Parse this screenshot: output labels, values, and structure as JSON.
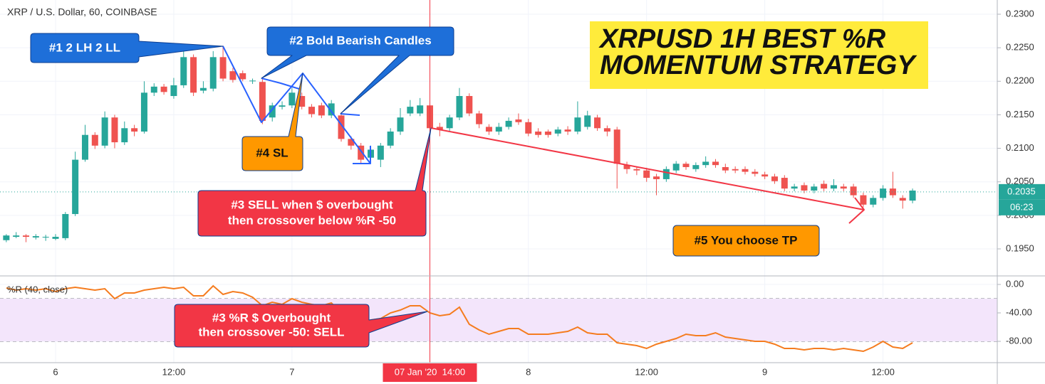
{
  "chart_data": {
    "type": "candlestick",
    "title": "XRP / U.S. Dollar, 60, COINBASE",
    "x": [
      -5,
      -4,
      -3,
      -2,
      -1,
      0,
      1,
      2,
      3,
      4,
      5,
      6,
      7,
      8,
      9,
      10,
      11,
      12,
      13,
      14,
      15,
      16,
      17,
      18,
      19,
      20,
      21,
      22,
      23,
      24,
      25,
      26,
      27,
      28,
      29,
      30,
      31,
      32,
      33,
      34,
      35,
      36,
      37,
      38,
      39,
      40,
      41,
      42,
      43,
      44,
      45,
      46,
      47,
      48,
      49,
      50,
      51,
      52,
      53,
      54,
      55,
      56,
      57,
      58,
      59,
      60,
      61,
      62,
      63,
      64,
      65,
      66,
      67,
      68,
      69,
      70,
      71,
      72,
      73,
      74,
      75,
      76,
      77,
      78,
      79,
      80,
      81,
      82,
      83,
      84,
      85,
      86,
      87
    ],
    "open": [
      0.1963,
      0.1968,
      0.197,
      0.1967,
      0.1967,
      0.1965,
      0.1966,
      0.2002,
      0.2083,
      0.212,
      0.2104,
      0.2146,
      0.2109,
      0.213,
      0.2125,
      0.2183,
      0.2192,
      0.2178,
      0.2194,
      0.2236,
      0.2186,
      0.2189,
      0.2236,
      0.2215,
      0.2212,
      0.22,
      0.2199,
      0.2146,
      0.2162,
      0.2164,
      0.2178,
      0.2162,
      0.2164,
      0.2149,
      0.2149,
      0.2114,
      0.2104,
      0.2086,
      0.2083,
      0.2104,
      0.2125,
      0.2152,
      0.2152,
      0.2164,
      0.2132,
      0.213,
      0.2146,
      0.2178,
      0.2152,
      0.2132,
      0.2125,
      0.2132,
      0.2143,
      0.2139,
      0.2125,
      0.2125,
      0.2122,
      0.2128,
      0.2125,
      0.2132,
      0.2146,
      0.213,
      0.2128,
      0.2075,
      0.2069,
      0.2067,
      0.2058,
      0.2054,
      0.2067,
      0.2077,
      0.2069,
      0.2075,
      0.208,
      0.2072,
      0.2069,
      0.2069,
      0.2065,
      0.2061,
      0.2058,
      0.2056,
      0.204,
      0.2045,
      0.2037,
      0.2047,
      0.204,
      0.2043,
      0.2043,
      0.203,
      0.2016,
      0.2026,
      0.204,
      0.2026,
      0.2022
    ],
    "high": [
      0.1972,
      0.1975,
      0.1972,
      0.1972,
      0.1971,
      0.1972,
      0.2005,
      0.2095,
      0.2135,
      0.2124,
      0.2155,
      0.215,
      0.214,
      0.2135,
      0.22,
      0.2197,
      0.2196,
      0.2205,
      0.2245,
      0.224,
      0.22,
      0.2245,
      0.2253,
      0.222,
      0.2216,
      0.2204,
      0.2203,
      0.2168,
      0.217,
      0.219,
      0.2183,
      0.2166,
      0.2168,
      0.2172,
      0.2154,
      0.2118,
      0.2108,
      0.2104,
      0.2108,
      0.213,
      0.216,
      0.2172,
      0.2175,
      0.2168,
      0.2138,
      0.215,
      0.219,
      0.2182,
      0.2156,
      0.2136,
      0.2138,
      0.2146,
      0.2152,
      0.2144,
      0.213,
      0.2128,
      0.2132,
      0.2133,
      0.217,
      0.2156,
      0.215,
      0.2134,
      0.2132,
      0.208,
      0.2073,
      0.2071,
      0.2062,
      0.2073,
      0.2081,
      0.208,
      0.2079,
      0.2088,
      0.2084,
      0.2077,
      0.2073,
      0.2073,
      0.2069,
      0.2065,
      0.2062,
      0.206,
      0.2047,
      0.2049,
      0.2047,
      0.2052,
      0.2054,
      0.2047,
      0.2047,
      0.2034,
      0.203,
      0.2045,
      0.2065,
      0.203,
      0.204
    ],
    "low": [
      0.196,
      0.1966,
      0.196,
      0.1964,
      0.1962,
      0.1963,
      0.1963,
      0.1999,
      0.208,
      0.2099,
      0.21,
      0.21,
      0.2105,
      0.2118,
      0.2122,
      0.2178,
      0.218,
      0.2174,
      0.219,
      0.2178,
      0.2182,
      0.2185,
      0.22,
      0.2198,
      0.22,
      0.2196,
      0.2136,
      0.214,
      0.2158,
      0.216,
      0.2158,
      0.2146,
      0.2145,
      0.2145,
      0.211,
      0.2098,
      0.2078,
      0.208,
      0.2072,
      0.21,
      0.212,
      0.2148,
      0.2148,
      0.2125,
      0.2118,
      0.2126,
      0.2142,
      0.2148,
      0.213,
      0.212,
      0.212,
      0.2128,
      0.2135,
      0.2118,
      0.2116,
      0.2116,
      0.2118,
      0.212,
      0.2121,
      0.2128,
      0.2126,
      0.2118,
      0.204,
      0.2062,
      0.206,
      0.205,
      0.203,
      0.205,
      0.2063,
      0.2068,
      0.2065,
      0.2071,
      0.2071,
      0.2063,
      0.2063,
      0.2061,
      0.2058,
      0.2054,
      0.2047,
      0.2036,
      0.2036,
      0.2033,
      0.2033,
      0.2036,
      0.2036,
      0.2036,
      0.2026,
      0.2012,
      0.2012,
      0.2022,
      0.2026,
      0.201,
      0.2018
    ],
    "close": [
      0.197,
      0.197,
      0.1968,
      0.1969,
      0.1968,
      0.1968,
      0.2002,
      0.2083,
      0.212,
      0.2104,
      0.2146,
      0.2109,
      0.213,
      0.2125,
      0.2183,
      0.2192,
      0.2184,
      0.2194,
      0.2236,
      0.2183,
      0.219,
      0.2236,
      0.2204,
      0.2202,
      0.2203,
      0.2201,
      0.2141,
      0.2164,
      0.2164,
      0.2183,
      0.2162,
      0.2151,
      0.2149,
      0.2167,
      0.2114,
      0.2104,
      0.2083,
      0.2098,
      0.2104,
      0.2125,
      0.2146,
      0.2162,
      0.2164,
      0.213,
      0.2128,
      0.2146,
      0.2178,
      0.2152,
      0.2136,
      0.2125,
      0.2132,
      0.2141,
      0.2139,
      0.2122,
      0.212,
      0.212,
      0.2128,
      0.2125,
      0.2146,
      0.2149,
      0.213,
      0.2125,
      0.2077,
      0.2069,
      0.2067,
      0.2056,
      0.2054,
      0.2069,
      0.2077,
      0.2072,
      0.2075,
      0.208,
      0.2075,
      0.2067,
      0.2067,
      0.2065,
      0.2062,
      0.2058,
      0.2051,
      0.204,
      0.2043,
      0.2037,
      0.2043,
      0.204,
      0.2045,
      0.204,
      0.203,
      0.2016,
      0.2026,
      0.204,
      0.203,
      0.2022,
      0.2037
    ],
    "up_color": "#26a69a",
    "down_color": "#ef5350",
    "xlim": [
      -5.64,
      95.6
    ],
    "xticks": [
      {
        "value": 0,
        "label": "6"
      },
      {
        "value": 12,
        "label": "12:00"
      },
      {
        "value": 24,
        "label": "7"
      },
      {
        "value": 48,
        "label": "8"
      },
      {
        "value": 60,
        "label": "12:00"
      },
      {
        "value": 72,
        "label": "9"
      },
      {
        "value": 84,
        "label": "12:00"
      }
    ],
    "ylim": [
      0.19097,
      0.23212
    ],
    "yticks": [
      {
        "value": 0.23,
        "label": "0.2300"
      },
      {
        "value": 0.225,
        "label": "0.2250"
      },
      {
        "value": 0.22,
        "label": "0.2200"
      },
      {
        "value": 0.215,
        "label": "0.2150"
      },
      {
        "value": 0.21,
        "label": "0.2100"
      },
      {
        "value": 0.205,
        "label": "0.2050"
      },
      {
        "value": 0.2,
        "label": "0.2000"
      },
      {
        "value": 0.195,
        "label": "0.1950"
      }
    ],
    "grid": true,
    "last_price": 0.2035,
    "countdown": "06:23",
    "crosshair": {
      "x": 38,
      "label": "07 Jan '20  14:00"
    },
    "indicator": {
      "name": "%R (40, close)",
      "color": "#f57c1f",
      "values": [
        -5,
        -8,
        -6,
        -8,
        -6,
        -10,
        -6,
        -4,
        -6,
        -8,
        -6,
        -20,
        -12,
        -12,
        -8,
        -6,
        -4,
        -6,
        -4,
        -16,
        -16,
        -2,
        -14,
        -10,
        -12,
        -18,
        -30,
        -25,
        -28,
        -20,
        -25,
        -28,
        -30,
        -26,
        -40,
        -46,
        -55,
        -50,
        -48,
        -40,
        -36,
        -30,
        -30,
        -40,
        -44,
        -42,
        -32,
        -56,
        -64,
        -70,
        -66,
        -62,
        -62,
        -70,
        -70,
        -70,
        -68,
        -66,
        -60,
        -68,
        -70,
        -70,
        -82,
        -84,
        -86,
        -90,
        -84,
        -80,
        -76,
        -70,
        -72,
        -72,
        -68,
        -74,
        -76,
        -78,
        -80,
        -80,
        -84,
        -90,
        -90,
        -92,
        -90,
        -90,
        -92,
        -90,
        -92,
        -94,
        -88,
        -80,
        -88,
        -90,
        -82
      ],
      "ylim": [
        -110,
        12
      ],
      "yticks": [
        {
          "value": 0,
          "label": "0.00"
        },
        {
          "value": -40,
          "label": "-40.00"
        },
        {
          "value": -80,
          "label": "-80.00"
        }
      ],
      "bands": [
        -20,
        -80
      ],
      "band_color": "#f3e5fb"
    },
    "strategy_title": [
      "XRPUSD 1H BEST %R",
      "MOMENTUM STRATEGY"
    ],
    "annotations": [
      [
        "#1 2 LH 2 LL"
      ],
      [
        "#2 Bold Bearish Candles"
      ],
      [
        "#4 SL"
      ],
      [
        "#3 SELL when $ overbought",
        "then crossover below %R -50"
      ],
      [
        "#5 You choose TP"
      ],
      [
        "#3 %R $ Overbought",
        "then crossover -50: SELL"
      ]
    ]
  }
}
